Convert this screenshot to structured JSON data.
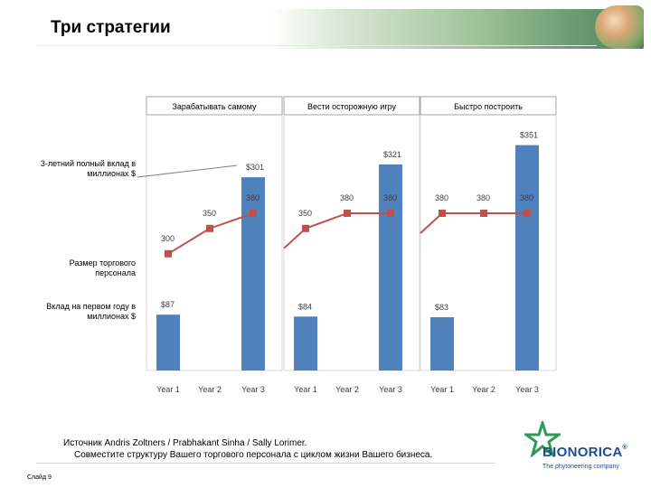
{
  "header": {
    "title": "Три стратегии"
  },
  "labels": {
    "total_investment": "3-летний полный вклад в миллионах $",
    "salesforce_size": "Размер торгового персонала",
    "first_year_investment": "Вклад на первом году в миллионах $"
  },
  "chart_data": [
    {
      "type": "bar",
      "title": "Зарабатывать самому",
      "categories": [
        "Year 1",
        "Year 2",
        "Year 3"
      ],
      "values": [
        87,
        null,
        301
      ],
      "value_labels": [
        "$87",
        "",
        "$301"
      ],
      "ylim": [
        0,
        380
      ],
      "line_series": {
        "values": [
          300,
          350,
          380
        ],
        "labels": [
          "300",
          "350",
          "380"
        ],
        "color": "#c0504d"
      },
      "bar_color": "#4f81bd"
    },
    {
      "type": "bar",
      "title": "Вести осторожную игру",
      "categories": [
        "Year 1",
        "Year 2",
        "Year 3"
      ],
      "values": [
        84,
        null,
        321
      ],
      "value_labels": [
        "$84",
        "",
        "$321"
      ],
      "ylim": [
        0,
        380
      ],
      "line_series": {
        "values": [
          350,
          380,
          380
        ],
        "labels": [
          "350",
          "380",
          "380"
        ],
        "color": "#c0504d"
      },
      "bar_color": "#4f81bd"
    },
    {
      "type": "bar",
      "title": "Быстро построить",
      "categories": [
        "Year 1",
        "Year 2",
        "Year 3"
      ],
      "values": [
        83,
        null,
        351
      ],
      "value_labels": [
        "$83",
        "",
        "$351"
      ],
      "ylim": [
        0,
        380
      ],
      "line_series": {
        "values": [
          380,
          380,
          380
        ],
        "labels": [
          "380",
          "380",
          "380"
        ],
        "color": "#c0504d"
      },
      "bar_color": "#4f81bd"
    }
  ],
  "source": {
    "line1": "Источник Andris Zoltners / Prabhakant Sinha / Sally Lorimer.",
    "line2": "Совместите структуру Вашего торгового персонала с циклом жизни Вашего бизнеса."
  },
  "footer": {
    "slide_label": "Слайд 9"
  },
  "logo": {
    "name": "BIONORICA",
    "reg": "®",
    "tagline": "The phytoneering company",
    "star_color": "#2e9a5a",
    "text_color": "#1f4f8a"
  }
}
